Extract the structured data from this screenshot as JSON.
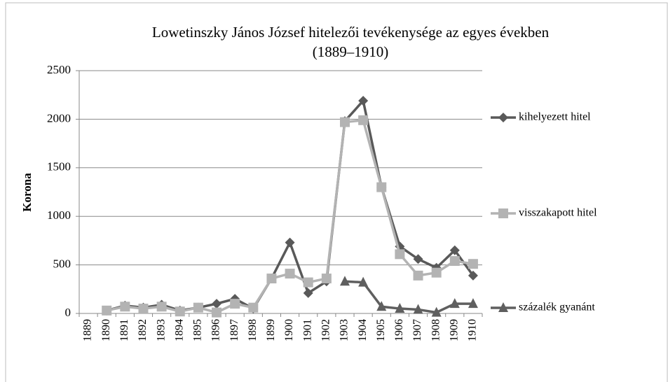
{
  "chart_data": {
    "type": "line",
    "title": "Lowetinszky János József hitelezői tevékenysége az egyes években",
    "subtitle": "(1889–1910)",
    "y_label": "Korona",
    "categories": [
      "1889",
      "1890",
      "1891",
      "1892",
      "1893",
      "1894",
      "1895",
      "1896",
      "1897",
      "1898",
      "1899",
      "1900",
      "1901",
      "1902",
      "1903",
      "1904",
      "1905",
      "1906",
      "1907",
      "1908",
      "1909",
      "1910"
    ],
    "series": [
      {
        "name": "kihelyezett hitel",
        "color": "#595959",
        "marker": "diamond",
        "values": [
          null,
          30,
          80,
          60,
          90,
          30,
          60,
          100,
          150,
          50,
          360,
          730,
          210,
          330,
          1980,
          2190,
          1300,
          690,
          560,
          470,
          650,
          390
        ]
      },
      {
        "name": "visszakapott hitel",
        "color": "#b3b3b3",
        "marker": "square",
        "values": [
          null,
          30,
          70,
          50,
          70,
          20,
          60,
          10,
          100,
          60,
          360,
          410,
          320,
          360,
          1970,
          1990,
          1300,
          610,
          390,
          420,
          540,
          510
        ]
      },
      {
        "name": "százalék gyanánt",
        "color": "#5f5f5f",
        "marker": "triangle",
        "values": [
          null,
          null,
          null,
          null,
          null,
          null,
          null,
          null,
          null,
          null,
          null,
          null,
          null,
          null,
          330,
          320,
          70,
          50,
          40,
          10,
          100,
          100
        ]
      }
    ],
    "ylim": [
      0,
      2500
    ],
    "yticks": [
      0,
      500,
      1000,
      1500,
      2000,
      2500
    ],
    "grid": true,
    "legend": "right"
  }
}
